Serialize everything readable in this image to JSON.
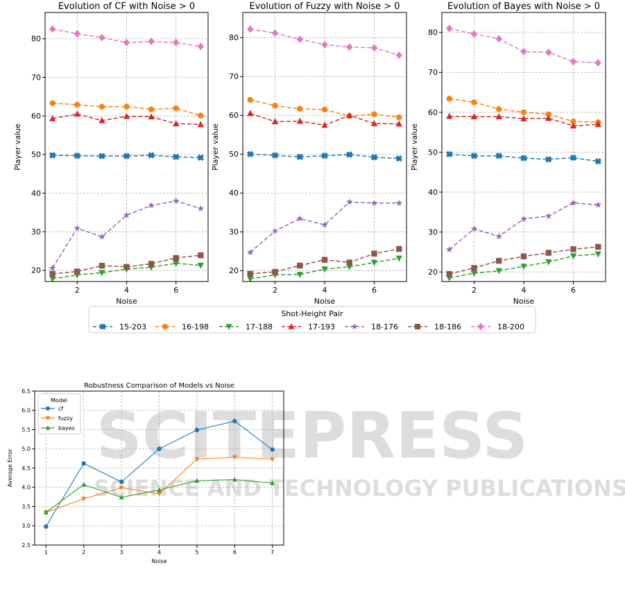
{
  "watermark": {
    "line1": "SCITEPRESS",
    "line2": "SCIENCE AND TECHNOLOGY PUBLICATIONS"
  },
  "colors": {
    "15-203": "#1f77b4",
    "16-198": "#ff7f0e",
    "17-188": "#2ca02c",
    "17-193": "#d62728",
    "18-176": "#9467bd",
    "18-186": "#8c564b",
    "18-200": "#e377c2"
  },
  "chart_data": [
    {
      "type": "line",
      "title": "Evolution of CF with Noise > 0",
      "xlabel": "Noise",
      "ylabel": "Player value",
      "x": [
        1,
        2,
        3,
        4,
        5,
        6,
        7
      ],
      "xticks": [
        2,
        4,
        6
      ],
      "yticks": [
        20,
        30,
        40,
        50,
        60,
        70,
        80
      ],
      "ylim": [
        17.1,
        86.8
      ],
      "xlim": [
        0.7,
        7.3
      ],
      "grid": true,
      "series": [
        {
          "name": "15-203",
          "marker": "X",
          "values": [
            49.8,
            49.7,
            49.6,
            49.6,
            49.8,
            49.4,
            49.2
          ]
        },
        {
          "name": "16-198",
          "marker": "o",
          "values": [
            63.3,
            62.9,
            62.4,
            62.4,
            61.7,
            62.0,
            60.1
          ]
        },
        {
          "name": "17-188",
          "marker": "v",
          "values": [
            17.8,
            18.8,
            19.4,
            20.3,
            20.8,
            21.8,
            21.3
          ]
        },
        {
          "name": "17-193",
          "marker": "^",
          "values": [
            59.3,
            60.5,
            58.8,
            59.9,
            59.8,
            58.0,
            57.8
          ]
        },
        {
          "name": "18-176",
          "marker": "*",
          "values": [
            20.6,
            30.9,
            28.7,
            34.3,
            36.8,
            38.0,
            36.0
          ]
        },
        {
          "name": "18-186",
          "marker": "s",
          "values": [
            19.1,
            19.7,
            21.2,
            20.9,
            21.7,
            23.2,
            23.9
          ]
        },
        {
          "name": "18-200",
          "marker": "D",
          "values": [
            82.5,
            81.3,
            80.3,
            79.0,
            79.3,
            79.0,
            78.0
          ]
        }
      ]
    },
    {
      "type": "line",
      "title": "Evolution of Fuzzy with Noise > 0",
      "xlabel": "Noise",
      "ylabel": "Player value",
      "x": [
        1,
        2,
        3,
        4,
        5,
        6,
        7
      ],
      "xticks": [
        2,
        4,
        6
      ],
      "yticks": [
        20,
        30,
        40,
        50,
        60,
        70,
        80
      ],
      "ylim": [
        17.2,
        86.5
      ],
      "xlim": [
        0.7,
        7.3
      ],
      "grid": true,
      "series": [
        {
          "name": "15-203",
          "marker": "X",
          "values": [
            50.0,
            49.7,
            49.3,
            49.6,
            49.9,
            49.2,
            48.9
          ]
        },
        {
          "name": "16-198",
          "marker": "o",
          "values": [
            64.0,
            62.5,
            61.7,
            61.5,
            59.8,
            60.3,
            59.5
          ]
        },
        {
          "name": "17-188",
          "marker": "v",
          "values": [
            17.9,
            18.9,
            19.0,
            20.4,
            21.0,
            22.1,
            23.2
          ]
        },
        {
          "name": "17-193",
          "marker": "^",
          "values": [
            60.5,
            58.4,
            58.5,
            57.5,
            60.0,
            57.9,
            57.8
          ]
        },
        {
          "name": "18-176",
          "marker": "*",
          "values": [
            24.7,
            30.2,
            33.4,
            31.8,
            37.7,
            37.4,
            37.4
          ]
        },
        {
          "name": "18-186",
          "marker": "s",
          "values": [
            19.2,
            19.7,
            21.3,
            22.8,
            22.1,
            24.4,
            25.6
          ]
        },
        {
          "name": "18-200",
          "marker": "D",
          "values": [
            82.2,
            81.2,
            79.6,
            78.2,
            77.6,
            77.4,
            75.5
          ]
        }
      ]
    },
    {
      "type": "line",
      "title": "Evolution of Bayes with Noise > 0",
      "xlabel": "Noise",
      "ylabel": "Player value",
      "x": [
        1,
        2,
        3,
        4,
        5,
        6,
        7
      ],
      "xticks": [
        2,
        4,
        6
      ],
      "yticks": [
        20,
        30,
        40,
        50,
        60,
        70,
        80
      ],
      "ylim": [
        17.6,
        85.0
      ],
      "xlim": [
        0.7,
        7.3
      ],
      "grid": true,
      "series": [
        {
          "name": "15-203",
          "marker": "X",
          "values": [
            49.5,
            49.1,
            49.1,
            48.5,
            48.2,
            48.6,
            47.7
          ]
        },
        {
          "name": "16-198",
          "marker": "o",
          "values": [
            63.4,
            62.5,
            60.8,
            60.0,
            59.5,
            57.7,
            57.5
          ]
        },
        {
          "name": "17-188",
          "marker": "v",
          "values": [
            18.5,
            19.7,
            20.3,
            21.4,
            22.5,
            24.0,
            24.5
          ]
        },
        {
          "name": "17-193",
          "marker": "^",
          "values": [
            59.0,
            58.9,
            58.9,
            58.4,
            58.5,
            56.6,
            57.0
          ]
        },
        {
          "name": "18-176",
          "marker": "*",
          "values": [
            25.6,
            30.8,
            28.9,
            33.3,
            34.0,
            37.3,
            36.8
          ]
        },
        {
          "name": "18-186",
          "marker": "s",
          "values": [
            19.5,
            21.0,
            22.8,
            23.9,
            24.8,
            25.7,
            26.3
          ]
        },
        {
          "name": "18-200",
          "marker": "D",
          "values": [
            81.0,
            79.6,
            78.4,
            75.2,
            75.0,
            72.7,
            72.4
          ]
        }
      ]
    },
    {
      "type": "line",
      "title": "Robustness Comparison of Models vs Noise",
      "xlabel": "Noise",
      "ylabel": "Average Error",
      "x": [
        1,
        2,
        3,
        4,
        5,
        6,
        7
      ],
      "xticks": [
        1,
        2,
        3,
        4,
        5,
        6,
        7
      ],
      "yticks": [
        2.5,
        3.0,
        3.5,
        4.0,
        4.5,
        5.0,
        5.5,
        6.0,
        6.5
      ],
      "ylim": [
        2.5,
        6.5
      ],
      "xlim": [
        0.7,
        7.3
      ],
      "grid": true,
      "legend_title": "Model",
      "legend_position": "upper-left",
      "series": [
        {
          "name": "cf",
          "marker": "o",
          "color": "#1f77b4",
          "values": [
            2.98,
            4.62,
            4.14,
            5.0,
            5.49,
            5.72,
            4.98
          ]
        },
        {
          "name": "fuzzy",
          "marker": "v",
          "color": "#ff7f0e",
          "values": [
            3.35,
            3.7,
            3.99,
            3.83,
            4.73,
            4.78,
            4.73
          ]
        },
        {
          "name": "bayes",
          "marker": "^",
          "color": "#2ca02c",
          "values": [
            3.35,
            4.07,
            3.74,
            3.93,
            4.17,
            4.2,
            4.11
          ]
        }
      ]
    }
  ],
  "shared_legend": {
    "title": "Shot-Height Pair",
    "position": "bottom-center",
    "entries": [
      "15-203",
      "16-198",
      "17-188",
      "17-193",
      "18-176",
      "18-186",
      "18-200"
    ]
  }
}
